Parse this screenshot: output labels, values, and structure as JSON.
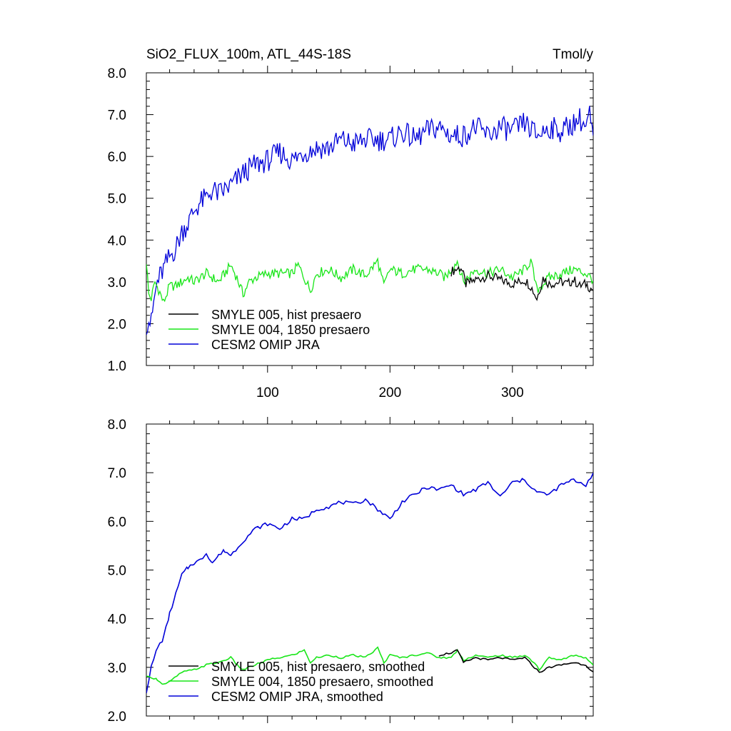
{
  "header": {
    "title": "SiO2_FLUX_100m, ATL_44S-18S",
    "units": "Tmol/y"
  },
  "colors": {
    "black_series": "#000000",
    "green_series": "#19e619",
    "blue_series": "#0000d9"
  },
  "chart_data": [
    {
      "type": "line",
      "title": "SiO2_FLUX_100m, ATL_44S-18S",
      "units": "Tmol/y",
      "xlim": [
        1,
        366
      ],
      "ylim": [
        1.0,
        8.0
      ],
      "x_ticks": [
        100,
        200,
        300
      ],
      "y_ticks": [
        "1.0",
        "2.0",
        "3.0",
        "4.0",
        "5.0",
        "6.0",
        "7.0",
        "8.0"
      ],
      "legend_position": "bottom-left",
      "series": [
        {
          "name": "SMYLE 005, hist presaero",
          "color": "#000000",
          "x": [
            250,
            258,
            262,
            270,
            280,
            290,
            300,
            305,
            310,
            315,
            320,
            325,
            330,
            340,
            345,
            350,
            355,
            360,
            366
          ],
          "y": [
            3.25,
            3.35,
            2.95,
            3.05,
            3.15,
            3.05,
            2.95,
            3.0,
            3.05,
            2.9,
            2.6,
            3.1,
            2.95,
            3.0,
            2.95,
            3.05,
            2.9,
            2.95,
            2.8
          ]
        },
        {
          "name": "SMYLE 004, 1850 presaero",
          "color": "#19e619",
          "x": [
            1,
            3,
            5,
            8,
            12,
            15,
            20,
            25,
            30,
            35,
            40,
            50,
            60,
            70,
            75,
            80,
            85,
            90,
            100,
            110,
            120,
            125,
            130,
            135,
            140,
            150,
            160,
            170,
            180,
            190,
            195,
            200,
            210,
            220,
            230,
            240,
            245,
            250,
            255,
            260,
            270,
            280,
            290,
            300,
            310,
            315,
            320,
            330,
            340,
            350,
            360,
            366
          ],
          "y": [
            3.5,
            2.7,
            2.6,
            3.0,
            2.75,
            2.5,
            2.9,
            2.9,
            3.0,
            3.1,
            3.0,
            3.2,
            3.0,
            3.4,
            3.1,
            2.7,
            3.0,
            3.1,
            3.2,
            3.2,
            3.2,
            3.4,
            3.1,
            2.8,
            3.2,
            3.3,
            3.1,
            3.3,
            3.15,
            3.5,
            2.9,
            3.3,
            3.2,
            3.3,
            3.3,
            3.2,
            3.1,
            3.3,
            3.5,
            3.0,
            3.3,
            3.2,
            3.3,
            3.1,
            3.3,
            3.5,
            2.8,
            3.1,
            3.2,
            3.3,
            3.2,
            3.05
          ]
        },
        {
          "name": "CESM2 OMIP JRA",
          "color": "#0000d9",
          "x": [
            1,
            3,
            5,
            7,
            10,
            15,
            20,
            25,
            30,
            35,
            40,
            45,
            50,
            55,
            60,
            70,
            80,
            90,
            100,
            110,
            120,
            130,
            140,
            150,
            160,
            170,
            180,
            190,
            200,
            210,
            220,
            230,
            240,
            250,
            260,
            270,
            280,
            290,
            300,
            310,
            320,
            330,
            340,
            350,
            355,
            360,
            363,
            366
          ],
          "y": [
            2.0,
            2.1,
            2.0,
            2.5,
            3.0,
            3.3,
            3.6,
            3.8,
            4.2,
            4.4,
            4.7,
            4.9,
            5.0,
            5.2,
            5.1,
            5.3,
            5.6,
            5.8,
            5.9,
            6.1,
            5.9,
            6.1,
            6.2,
            6.2,
            6.4,
            6.3,
            6.4,
            6.4,
            6.4,
            6.6,
            6.4,
            6.6,
            6.7,
            6.5,
            6.5,
            6.7,
            6.5,
            6.7,
            6.6,
            6.8,
            6.5,
            6.7,
            6.6,
            6.8,
            6.9,
            6.7,
            7.0,
            6.4
          ]
        }
      ]
    },
    {
      "type": "line",
      "xlim": [
        1,
        366
      ],
      "ylim": [
        2.0,
        8.0
      ],
      "y_ticks": [
        "2.0",
        "3.0",
        "4.0",
        "5.0",
        "6.0",
        "7.0",
        "8.0"
      ],
      "legend_position": "bottom-left",
      "series": [
        {
          "name": "SMYLE 005, hist presaero, smoothed",
          "color": "#000000",
          "x": [
            240,
            250,
            255,
            260,
            270,
            280,
            290,
            300,
            310,
            318,
            322,
            330,
            340,
            350,
            360,
            366
          ],
          "y": [
            3.25,
            3.3,
            3.35,
            3.1,
            3.2,
            3.15,
            3.2,
            3.15,
            3.2,
            3.0,
            2.9,
            3.0,
            3.05,
            3.1,
            3.05,
            2.9
          ]
        },
        {
          "name": "SMYLE 004, 1850 presaero, smoothed",
          "color": "#19e619",
          "x": [
            1,
            5,
            10,
            15,
            20,
            30,
            40,
            50,
            60,
            70,
            75,
            80,
            90,
            100,
            110,
            120,
            130,
            135,
            140,
            150,
            160,
            170,
            180,
            190,
            195,
            200,
            210,
            220,
            230,
            240,
            250,
            255,
            260,
            270,
            280,
            290,
            300,
            310,
            318,
            322,
            330,
            340,
            350,
            360,
            366
          ],
          "y": [
            2.8,
            2.8,
            2.75,
            2.65,
            2.7,
            2.9,
            2.95,
            3.05,
            3.1,
            3.2,
            3.05,
            2.95,
            3.05,
            3.15,
            3.2,
            3.25,
            3.35,
            3.1,
            3.2,
            3.25,
            3.2,
            3.25,
            3.2,
            3.4,
            3.1,
            3.25,
            3.2,
            3.25,
            3.3,
            3.2,
            3.2,
            3.35,
            3.15,
            3.25,
            3.2,
            3.25,
            3.2,
            3.25,
            3.1,
            2.95,
            3.2,
            3.15,
            3.25,
            3.2,
            3.05
          ]
        },
        {
          "name": "CESM2 OMIP JRA, smoothed",
          "color": "#0000d9",
          "x": [
            1,
            5,
            10,
            15,
            20,
            25,
            30,
            35,
            40,
            45,
            50,
            55,
            60,
            65,
            70,
            80,
            90,
            100,
            110,
            120,
            130,
            140,
            150,
            160,
            170,
            180,
            190,
            200,
            210,
            220,
            230,
            240,
            250,
            260,
            270,
            280,
            290,
            300,
            310,
            320,
            330,
            340,
            350,
            360,
            366
          ],
          "y": [
            2.5,
            3.0,
            3.4,
            3.6,
            4.1,
            4.5,
            4.9,
            5.05,
            5.15,
            5.2,
            5.35,
            5.15,
            5.3,
            5.4,
            5.3,
            5.6,
            5.85,
            5.95,
            5.85,
            6.05,
            6.05,
            6.25,
            6.3,
            6.4,
            6.35,
            6.45,
            6.25,
            6.05,
            6.4,
            6.55,
            6.7,
            6.65,
            6.75,
            6.55,
            6.65,
            6.8,
            6.5,
            6.8,
            6.85,
            6.6,
            6.55,
            6.75,
            6.85,
            6.75,
            7.0
          ]
        }
      ]
    }
  ]
}
